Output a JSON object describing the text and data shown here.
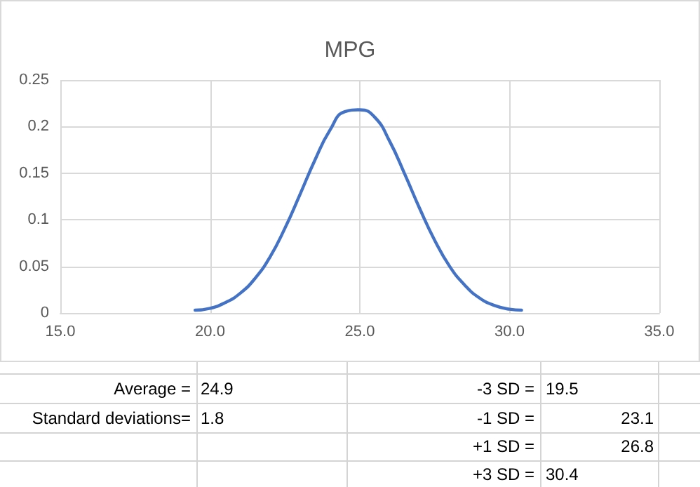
{
  "chart_data": {
    "type": "line",
    "title": "MPG",
    "color": "#4472c4",
    "x": [
      19.5,
      20,
      20.5,
      21,
      21.5,
      22,
      22.5,
      23,
      23.5,
      24,
      24.5,
      25,
      25.5,
      26,
      26.5,
      27,
      27.5,
      28,
      28.5,
      29,
      29.5,
      30,
      30.4
    ],
    "values": [
      0.003,
      0.005,
      0.011,
      0.021,
      0.037,
      0.06,
      0.091,
      0.127,
      0.164,
      0.196,
      0.216,
      0.218,
      0.21,
      0.184,
      0.149,
      0.112,
      0.078,
      0.05,
      0.03,
      0.016,
      0.008,
      0.004,
      0.003
    ],
    "xlim": [
      15,
      35
    ],
    "xticks": [
      {
        "value": 15,
        "label": "15.0"
      },
      {
        "value": 20,
        "label": "20.0"
      },
      {
        "value": 25,
        "label": "25.0"
      },
      {
        "value": 30,
        "label": "30.0"
      },
      {
        "value": 35,
        "label": "35.0"
      }
    ],
    "ylim": [
      0,
      0.25
    ],
    "yticks": [
      0,
      0.05,
      0.1,
      0.15,
      0.2,
      0.25
    ],
    "grid": true,
    "marker": "none",
    "line_style": "solid",
    "annotations": [
      "Average =",
      "24.9",
      "-3 SD =",
      "19.5",
      "Standard deviations=",
      "1.8",
      "-1 SD =",
      "23.1",
      "+1 SD =",
      "26.8",
      "+3 SD =",
      "30.4"
    ]
  }
}
